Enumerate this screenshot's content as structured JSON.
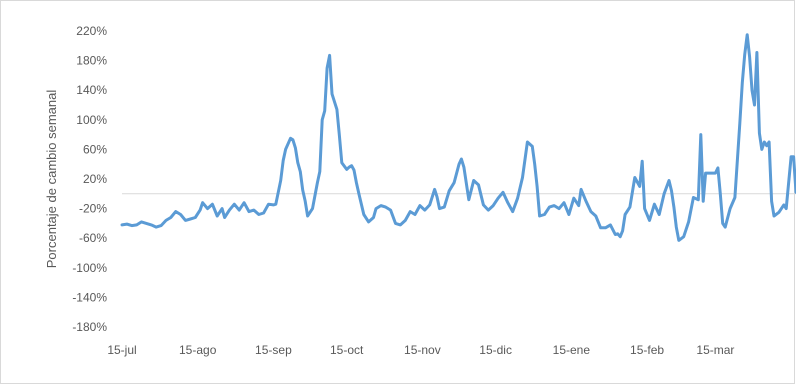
{
  "chart_data": {
    "type": "line",
    "title": "",
    "xlabel": "",
    "ylabel": "Porcentaje de cambio semanal",
    "ylim": [
      -180,
      220
    ],
    "y_ticks": [
      220,
      180,
      140,
      100,
      60,
      20,
      -20,
      -60,
      -100,
      -140,
      -180
    ],
    "y_tick_labels": [
      "220%",
      "180%",
      "140%",
      "100%",
      "60%",
      "20%",
      "-20%",
      "-60%",
      "-100%",
      "-140%",
      "-180%"
    ],
    "x_ticks": [
      {
        "day": 0,
        "label": "15-jul"
      },
      {
        "day": 31,
        "label": "15-ago"
      },
      {
        "day": 62,
        "label": "15-sep"
      },
      {
        "day": 92,
        "label": "15-oct"
      },
      {
        "day": 123,
        "label": "15-nov"
      },
      {
        "day": 153,
        "label": "15-dic"
      },
      {
        "day": 184,
        "label": "15-ene"
      },
      {
        "day": 215,
        "label": "15-feb"
      },
      {
        "day": 243,
        "label": "15-mar"
      }
    ],
    "x_range": [
      0,
      276
    ],
    "grid": false,
    "zero_line": true,
    "line_color": "#5b9bd5",
    "series": [
      {
        "name": "",
        "points": [
          [
            0,
            -42
          ],
          [
            2,
            -41
          ],
          [
            4,
            -43
          ],
          [
            6,
            -42
          ],
          [
            8,
            -38
          ],
          [
            10,
            -40
          ],
          [
            12,
            -42
          ],
          [
            14,
            -45
          ],
          [
            16,
            -43
          ],
          [
            18,
            -36
          ],
          [
            20,
            -32
          ],
          [
            22,
            -24
          ],
          [
            24,
            -28
          ],
          [
            26,
            -36
          ],
          [
            28,
            -34
          ],
          [
            30,
            -32
          ],
          [
            32,
            -22
          ],
          [
            33,
            -12
          ],
          [
            35,
            -20
          ],
          [
            37,
            -14
          ],
          [
            39,
            -30
          ],
          [
            41,
            -20
          ],
          [
            42,
            -32
          ],
          [
            44,
            -22
          ],
          [
            46,
            -14
          ],
          [
            48,
            -22
          ],
          [
            50,
            -12
          ],
          [
            52,
            -24
          ],
          [
            54,
            -22
          ],
          [
            56,
            -28
          ],
          [
            58,
            -26
          ],
          [
            60,
            -14
          ],
          [
            62,
            -15
          ],
          [
            63,
            -14
          ],
          [
            65,
            18
          ],
          [
            66,
            45
          ],
          [
            67,
            60
          ],
          [
            69,
            75
          ],
          [
            70,
            73
          ],
          [
            71,
            62
          ],
          [
            72,
            42
          ],
          [
            73,
            30
          ],
          [
            74,
            5
          ],
          [
            75,
            -10
          ],
          [
            76,
            -30
          ],
          [
            78,
            -20
          ],
          [
            80,
            15
          ],
          [
            81,
            30
          ],
          [
            82,
            100
          ],
          [
            83,
            112
          ],
          [
            84,
            170
          ],
          [
            85,
            187
          ],
          [
            86,
            135
          ],
          [
            88,
            114
          ],
          [
            89,
            80
          ],
          [
            90,
            42
          ],
          [
            92,
            33
          ],
          [
            93,
            36
          ],
          [
            94,
            38
          ],
          [
            95,
            32
          ],
          [
            96,
            15
          ],
          [
            97,
            0
          ],
          [
            99,
            -28
          ],
          [
            101,
            -38
          ],
          [
            103,
            -32
          ],
          [
            104,
            -20
          ],
          [
            106,
            -16
          ],
          [
            108,
            -18
          ],
          [
            110,
            -22
          ],
          [
            112,
            -40
          ],
          [
            114,
            -42
          ],
          [
            116,
            -36
          ],
          [
            118,
            -24
          ],
          [
            120,
            -28
          ],
          [
            122,
            -16
          ],
          [
            124,
            -22
          ],
          [
            126,
            -15
          ],
          [
            128,
            6
          ],
          [
            129,
            -4
          ],
          [
            130,
            -20
          ],
          [
            132,
            -18
          ],
          [
            134,
            4
          ],
          [
            136,
            15
          ],
          [
            138,
            40
          ],
          [
            139,
            47
          ],
          [
            140,
            36
          ],
          [
            142,
            -8
          ],
          [
            144,
            18
          ],
          [
            146,
            12
          ],
          [
            148,
            -15
          ],
          [
            150,
            -22
          ],
          [
            152,
            -16
          ],
          [
            154,
            -6
          ],
          [
            156,
            2
          ],
          [
            158,
            -12
          ],
          [
            160,
            -24
          ],
          [
            162,
            -6
          ],
          [
            164,
            22
          ],
          [
            166,
            70
          ],
          [
            168,
            64
          ],
          [
            169,
            40
          ],
          [
            170,
            10
          ],
          [
            171,
            -30
          ],
          [
            173,
            -28
          ],
          [
            175,
            -18
          ],
          [
            177,
            -16
          ],
          [
            179,
            -20
          ],
          [
            181,
            -12
          ],
          [
            183,
            -28
          ],
          [
            185,
            -6
          ],
          [
            187,
            -16
          ],
          [
            188,
            6
          ],
          [
            190,
            -10
          ],
          [
            192,
            -24
          ],
          [
            194,
            -30
          ],
          [
            196,
            -46
          ],
          [
            198,
            -46
          ],
          [
            200,
            -42
          ],
          [
            202,
            -55
          ],
          [
            203,
            -54
          ],
          [
            204,
            -58
          ],
          [
            205,
            -50
          ],
          [
            206,
            -28
          ],
          [
            208,
            -18
          ],
          [
            210,
            22
          ],
          [
            212,
            10
          ],
          [
            213,
            44
          ],
          [
            214,
            -20
          ],
          [
            216,
            -36
          ],
          [
            218,
            -14
          ],
          [
            220,
            -28
          ],
          [
            222,
            0
          ],
          [
            224,
            18
          ],
          [
            225,
            4
          ],
          [
            226,
            -18
          ],
          [
            227,
            -45
          ],
          [
            228,
            -63
          ],
          [
            230,
            -58
          ],
          [
            232,
            -38
          ],
          [
            234,
            -5
          ],
          [
            236,
            -8
          ],
          [
            237,
            80
          ],
          [
            238,
            -10
          ],
          [
            239,
            28
          ],
          [
            241,
            28
          ],
          [
            243,
            28
          ],
          [
            244,
            35
          ],
          [
            245,
            0
          ],
          [
            246,
            -40
          ],
          [
            247,
            -45
          ],
          [
            249,
            -20
          ],
          [
            251,
            -5
          ],
          [
            253,
            95
          ],
          [
            254,
            150
          ],
          [
            255,
            188
          ],
          [
            256,
            215
          ],
          [
            257,
            185
          ],
          [
            258,
            140
          ],
          [
            259,
            120
          ],
          [
            260,
            191
          ],
          [
            261,
            82
          ],
          [
            262,
            60
          ],
          [
            263,
            70
          ],
          [
            264,
            65
          ],
          [
            265,
            70
          ],
          [
            266,
            -10
          ],
          [
            267,
            -30
          ],
          [
            269,
            -25
          ],
          [
            271,
            -15
          ],
          [
            272,
            -20
          ],
          [
            274,
            50
          ],
          [
            275,
            50
          ],
          [
            276,
            2
          ]
        ]
      }
    ]
  }
}
